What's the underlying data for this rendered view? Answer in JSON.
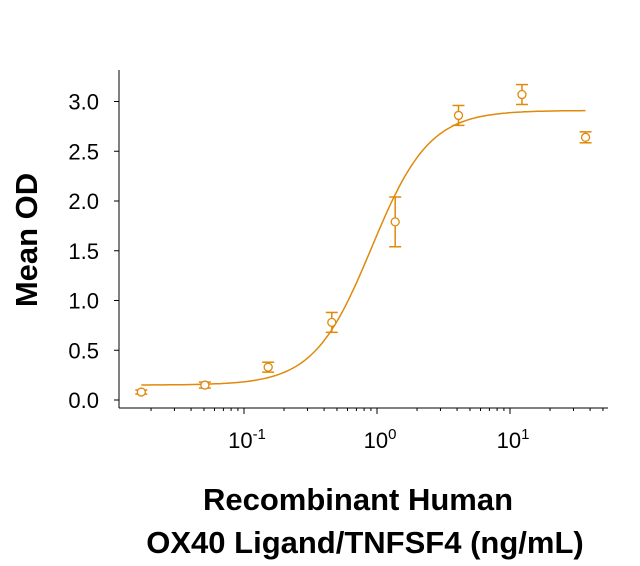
{
  "chart_data": {
    "type": "scatter",
    "title": "",
    "xlabel": [
      "Recombinant Human",
      "OX40 Ligand/TNFSF4 (ng/mL)"
    ],
    "ylabel": "Mean OD",
    "x_scale": "log",
    "xlim": [
      0.0115,
      55
    ],
    "ylim": [
      0,
      3.3
    ],
    "x_ticks": [
      {
        "base": "10",
        "exp": "-1",
        "value": 0.1
      },
      {
        "base": "10",
        "exp": "0",
        "value": 1
      },
      {
        "base": "10",
        "exp": "1",
        "value": 10
      }
    ],
    "y_ticks": [
      "0.0",
      "0.5",
      "1.0",
      "1.5",
      "2.0",
      "2.5",
      "3.0"
    ],
    "grid": false,
    "color": "#E0890A",
    "points": {
      "x": [
        0.0169,
        0.0508,
        0.152,
        0.457,
        1.37,
        4.1,
        12.3,
        37
      ],
      "y": [
        0.08,
        0.15,
        0.33,
        0.78,
        1.79,
        2.86,
        3.07,
        2.64
      ],
      "error": [
        0.02,
        0.03,
        0.05,
        0.1,
        0.25,
        0.1,
        0.1,
        0.055
      ]
    },
    "fit": {
      "model": "4PL",
      "bottom": 0.15,
      "top": 2.91,
      "ec50": 0.91,
      "hill": 2.0
    }
  }
}
